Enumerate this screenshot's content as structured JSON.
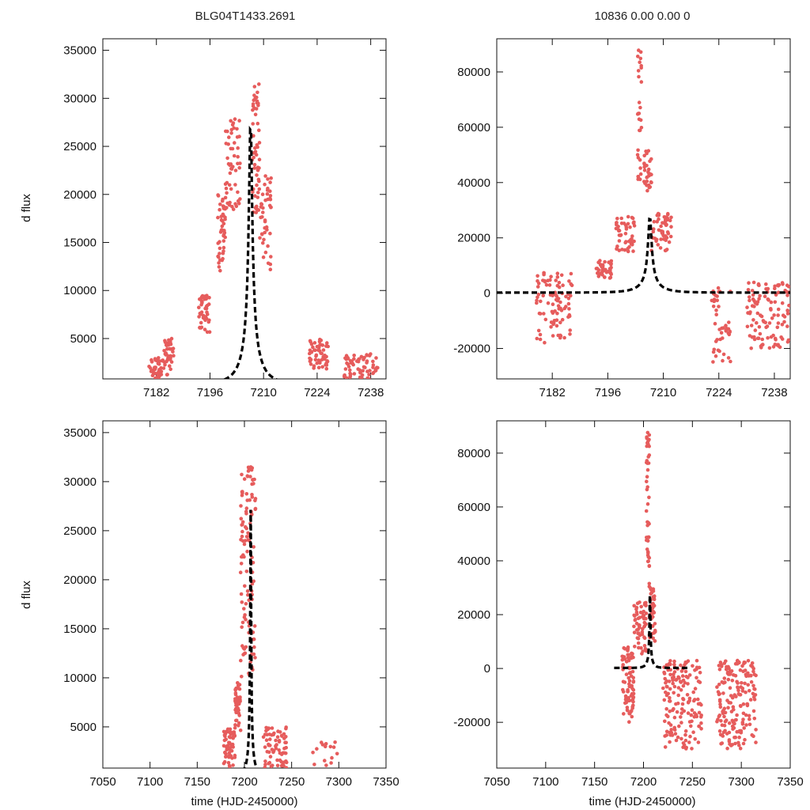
{
  "figure": {
    "title_left": "BLG04T1433.2691",
    "title_right": "10836  0.00  0.00  0",
    "ylabel": "d flux",
    "xlabel": "time (HJD-2450000)"
  },
  "fit": {
    "t0": 7206.6,
    "tE": 6.2,
    "peak": 28000,
    "baseline": 200
  },
  "colors": {
    "points": "#e65c5c",
    "fit": "#000000"
  },
  "chart_data": [
    {
      "type": "scatter",
      "name": "panel-top-left",
      "xlim": [
        7168,
        7242
      ],
      "ylim": [
        800,
        36200
      ],
      "xticks": [
        7182,
        7196,
        7210,
        7224,
        7238
      ],
      "yticks": [
        5000,
        10000,
        15000,
        20000,
        25000,
        30000,
        35000
      ],
      "series": [
        {
          "name": "data",
          "clusters": [
            {
              "x": [
                7180,
                7184
              ],
              "ymin": 800,
              "ymax": 3000,
              "n": 40
            },
            {
              "x": [
                7184,
                7186.5
              ],
              "ymin": 1200,
              "ymax": 5000,
              "n": 40
            },
            {
              "x": [
                7193,
                7196
              ],
              "ymin": 5500,
              "ymax": 9500,
              "n": 45
            },
            {
              "x": [
                7198,
                7200
              ],
              "ymin": 12000,
              "ymax": 20000,
              "n": 45
            },
            {
              "x": [
                7200,
                7204
              ],
              "ymin": 18000,
              "ymax": 28000,
              "n": 55
            },
            {
              "x": [
                7207,
                7209
              ],
              "ymin": 18000,
              "ymax": 31500,
              "n": 55
            },
            {
              "x": [
                7209,
                7212
              ],
              "ymin": 12000,
              "ymax": 22000,
              "n": 45
            },
            {
              "x": [
                7222,
                7227
              ],
              "ymin": 1800,
              "ymax": 5000,
              "n": 55
            },
            {
              "x": [
                7231,
                7240
              ],
              "ymin": 800,
              "ymax": 3500,
              "n": 65
            }
          ]
        },
        {
          "name": "fit",
          "model": "pspl"
        }
      ]
    },
    {
      "type": "scatter",
      "name": "panel-top-right",
      "xlim": [
        7168,
        7242
      ],
      "ylim": [
        -31000,
        92000
      ],
      "xticks": [
        7182,
        7196,
        7210,
        7224,
        7238
      ],
      "yticks": [
        -20000,
        0,
        20000,
        40000,
        60000,
        80000
      ],
      "series": [
        {
          "name": "data",
          "clusters": [
            {
              "x": [
                7178,
                7187
              ],
              "ymin": -18000,
              "ymax": 8000,
              "n": 90
            },
            {
              "x": [
                7193,
                7197
              ],
              "ymin": 5000,
              "ymax": 12000,
              "n": 40
            },
            {
              "x": [
                7198,
                7203
              ],
              "ymin": 15000,
              "ymax": 28000,
              "n": 50
            },
            {
              "x": [
                7203.5,
                7204.5
              ],
              "ymin": 40000,
              "ymax": 88000,
              "n": 30
            },
            {
              "x": [
                7205,
                7207
              ],
              "ymin": 37000,
              "ymax": 52000,
              "n": 30
            },
            {
              "x": [
                7207,
                7212
              ],
              "ymin": 15000,
              "ymax": 30000,
              "n": 55
            },
            {
              "x": [
                7222,
                7227
              ],
              "ymin": -25000,
              "ymax": 4000,
              "n": 45
            },
            {
              "x": [
                7231,
                7242
              ],
              "ymin": -20000,
              "ymax": 4000,
              "n": 110
            }
          ]
        },
        {
          "name": "fit",
          "model": "pspl"
        }
      ]
    },
    {
      "type": "scatter",
      "name": "panel-bottom-left",
      "xlim": [
        7050,
        7350
      ],
      "ylim": [
        800,
        36200
      ],
      "xticks": [
        7050,
        7100,
        7150,
        7200,
        7250,
        7300,
        7350
      ],
      "yticks": [
        5000,
        10000,
        15000,
        20000,
        25000,
        30000,
        35000
      ],
      "series": [
        {
          "name": "data",
          "clusters": [
            {
              "x": [
                7178,
                7190
              ],
              "ymin": 800,
              "ymax": 5000,
              "n": 60
            },
            {
              "x": [
                7190,
                7196
              ],
              "ymin": 4000,
              "ymax": 9500,
              "n": 40
            },
            {
              "x": [
                7196,
                7212
              ],
              "ymin": 10000,
              "ymax": 31500,
              "n": 110
            },
            {
              "x": [
                7220,
                7245
              ],
              "ymin": 800,
              "ymax": 5000,
              "n": 70
            },
            {
              "x": [
                7270,
                7300
              ],
              "ymin": 800,
              "ymax": 3500,
              "n": 15
            }
          ]
        },
        {
          "name": "fit",
          "model": "pspl"
        }
      ]
    },
    {
      "type": "scatter",
      "name": "panel-bottom-right",
      "xlim": [
        7050,
        7350
      ],
      "ylim": [
        -37000,
        92000
      ],
      "xticks": [
        7050,
        7100,
        7150,
        7200,
        7250,
        7300,
        7350
      ],
      "yticks": [
        -20000,
        0,
        20000,
        40000,
        60000,
        80000
      ],
      "series": [
        {
          "name": "data",
          "clusters": [
            {
              "x": [
                7178,
                7190
              ],
              "ymin": -20000,
              "ymax": 8000,
              "n": 80
            },
            {
              "x": [
                7190,
                7203
              ],
              "ymin": 5000,
              "ymax": 25000,
              "n": 60
            },
            {
              "x": [
                7203,
                7206
              ],
              "ymin": 30000,
              "ymax": 90000,
              "n": 45
            },
            {
              "x": [
                7206,
                7212
              ],
              "ymin": 10000,
              "ymax": 30000,
              "n": 50
            },
            {
              "x": [
                7220,
                7260
              ],
              "ymin": -30000,
              "ymax": 3000,
              "n": 160
            },
            {
              "x": [
                7275,
                7315
              ],
              "ymin": -30000,
              "ymax": 3000,
              "n": 180
            }
          ]
        },
        {
          "name": "fit",
          "model": "pspl"
        }
      ]
    }
  ]
}
